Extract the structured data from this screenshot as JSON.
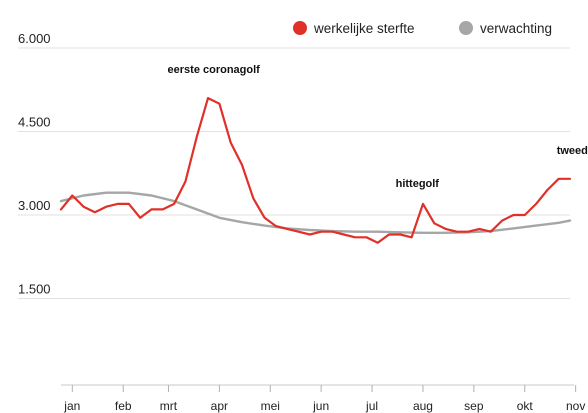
{
  "chart_data": {
    "type": "line",
    "ylim": [
      0,
      6000
    ],
    "y_ticks": [
      {
        "value": 6000,
        "label": "6.000"
      },
      {
        "value": 4500,
        "label": "4.500"
      },
      {
        "value": 3000,
        "label": "3.000"
      },
      {
        "value": 1500,
        "label": "1.500"
      }
    ],
    "x_ticks": [
      {
        "week": 1,
        "label": "jan"
      },
      {
        "week": 5.5,
        "label": "feb"
      },
      {
        "week": 9.5,
        "label": "mrt"
      },
      {
        "week": 14,
        "label": "apr"
      },
      {
        "week": 18.5,
        "label": "mei"
      },
      {
        "week": 23,
        "label": "jun"
      },
      {
        "week": 27.5,
        "label": "jul"
      },
      {
        "week": 32,
        "label": "aug"
      },
      {
        "week": 36.5,
        "label": "sep"
      },
      {
        "week": 41,
        "label": "okt"
      },
      {
        "week": 45.5,
        "label": "nov"
      }
    ],
    "grid": true,
    "legend_position": "top-right",
    "series": [
      {
        "name": "werkelijke sterfte",
        "color": "#e0302a",
        "points": [
          [
            0,
            3100
          ],
          [
            1,
            3350
          ],
          [
            2,
            3150
          ],
          [
            3,
            3050
          ],
          [
            4,
            3150
          ],
          [
            5,
            3200
          ],
          [
            6,
            3200
          ],
          [
            7,
            2950
          ],
          [
            8,
            3100
          ],
          [
            9,
            3100
          ],
          [
            10,
            3200
          ],
          [
            11,
            3600
          ],
          [
            12,
            4400
          ],
          [
            13,
            5100
          ],
          [
            14,
            5000
          ],
          [
            15,
            4300
          ],
          [
            16,
            3900
          ],
          [
            17,
            3300
          ],
          [
            18,
            2950
          ],
          [
            19,
            2800
          ],
          [
            20,
            2750
          ],
          [
            21,
            2700
          ],
          [
            22,
            2650
          ],
          [
            23,
            2700
          ],
          [
            24,
            2700
          ],
          [
            25,
            2650
          ],
          [
            26,
            2600
          ],
          [
            27,
            2600
          ],
          [
            28,
            2500
          ],
          [
            29,
            2650
          ],
          [
            30,
            2650
          ],
          [
            31,
            2600
          ],
          [
            32,
            3200
          ],
          [
            33,
            2850
          ],
          [
            34,
            2750
          ],
          [
            35,
            2700
          ],
          [
            36,
            2700
          ],
          [
            37,
            2750
          ],
          [
            38,
            2700
          ],
          [
            39,
            2900
          ],
          [
            40,
            3000
          ],
          [
            41,
            3000
          ],
          [
            42,
            3200
          ],
          [
            43,
            3450
          ],
          [
            44,
            3650
          ],
          [
            45,
            3650
          ]
        ]
      },
      {
        "name": "verwachting",
        "color": "#a6a6a6",
        "points": [
          [
            0,
            3250
          ],
          [
            2,
            3350
          ],
          [
            4,
            3400
          ],
          [
            6,
            3400
          ],
          [
            8,
            3350
          ],
          [
            10,
            3250
          ],
          [
            12,
            3100
          ],
          [
            14,
            2950
          ],
          [
            16,
            2870
          ],
          [
            18,
            2810
          ],
          [
            20,
            2760
          ],
          [
            22,
            2730
          ],
          [
            24,
            2710
          ],
          [
            26,
            2700
          ],
          [
            28,
            2700
          ],
          [
            30,
            2690
          ],
          [
            32,
            2680
          ],
          [
            34,
            2680
          ],
          [
            36,
            2690
          ],
          [
            38,
            2710
          ],
          [
            40,
            2760
          ],
          [
            42,
            2810
          ],
          [
            44,
            2860
          ],
          [
            45,
            2900
          ]
        ]
      }
    ],
    "annotations": [
      {
        "text": "eerste coronagolf",
        "week": 13.5,
        "y": 5550
      },
      {
        "text": "hittegolf",
        "week": 31.5,
        "y": 3500
      },
      {
        "text": "tweede golf",
        "week": 46.5,
        "y": 4100
      }
    ]
  }
}
